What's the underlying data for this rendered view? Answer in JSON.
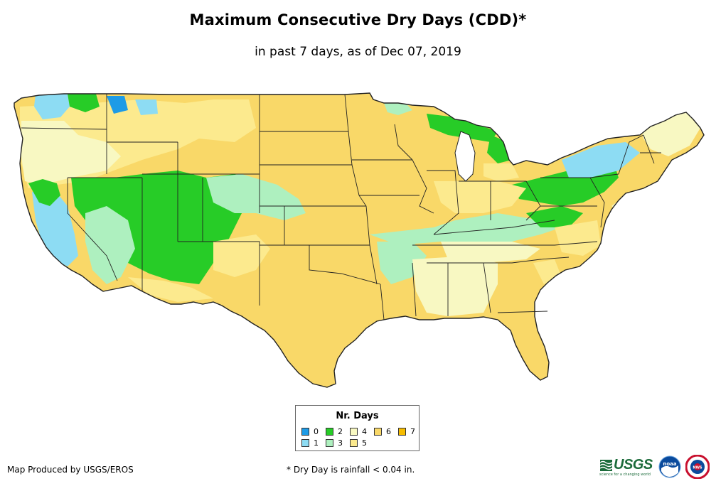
{
  "header": {
    "title": "Maximum Consecutive Dry Days (CDD)*",
    "subtitle": "in past 7 days, as of Dec 07, 2019"
  },
  "legend": {
    "title": "Nr. Days",
    "items": [
      {
        "label": "0",
        "color": "#1e9be6"
      },
      {
        "label": "1",
        "color": "#8ddcf3"
      },
      {
        "label": "2",
        "color": "#27cc27"
      },
      {
        "label": "3",
        "color": "#aef0bf"
      },
      {
        "label": "4",
        "color": "#f8f8c2"
      },
      {
        "label": "5",
        "color": "#fcea8e"
      },
      {
        "label": "6",
        "color": "#f9d868"
      },
      {
        "label": "7",
        "color": "#f6bc00"
      }
    ]
  },
  "footer": {
    "credit": "Map Produced by USGS/EROS",
    "footnote": "* Dry Day is rainfall < 0.04 in."
  },
  "logos": {
    "usgs": {
      "text": "USGS",
      "tagline": "science for a changing world"
    },
    "noaa": {
      "text": "noaa"
    },
    "nws": {
      "text": "NWS"
    }
  },
  "colors": {
    "background": "#ffffff",
    "border": "#222222",
    "usgs_green": "#1b6b3a",
    "noaa_blue": "#0a4a9c"
  }
}
